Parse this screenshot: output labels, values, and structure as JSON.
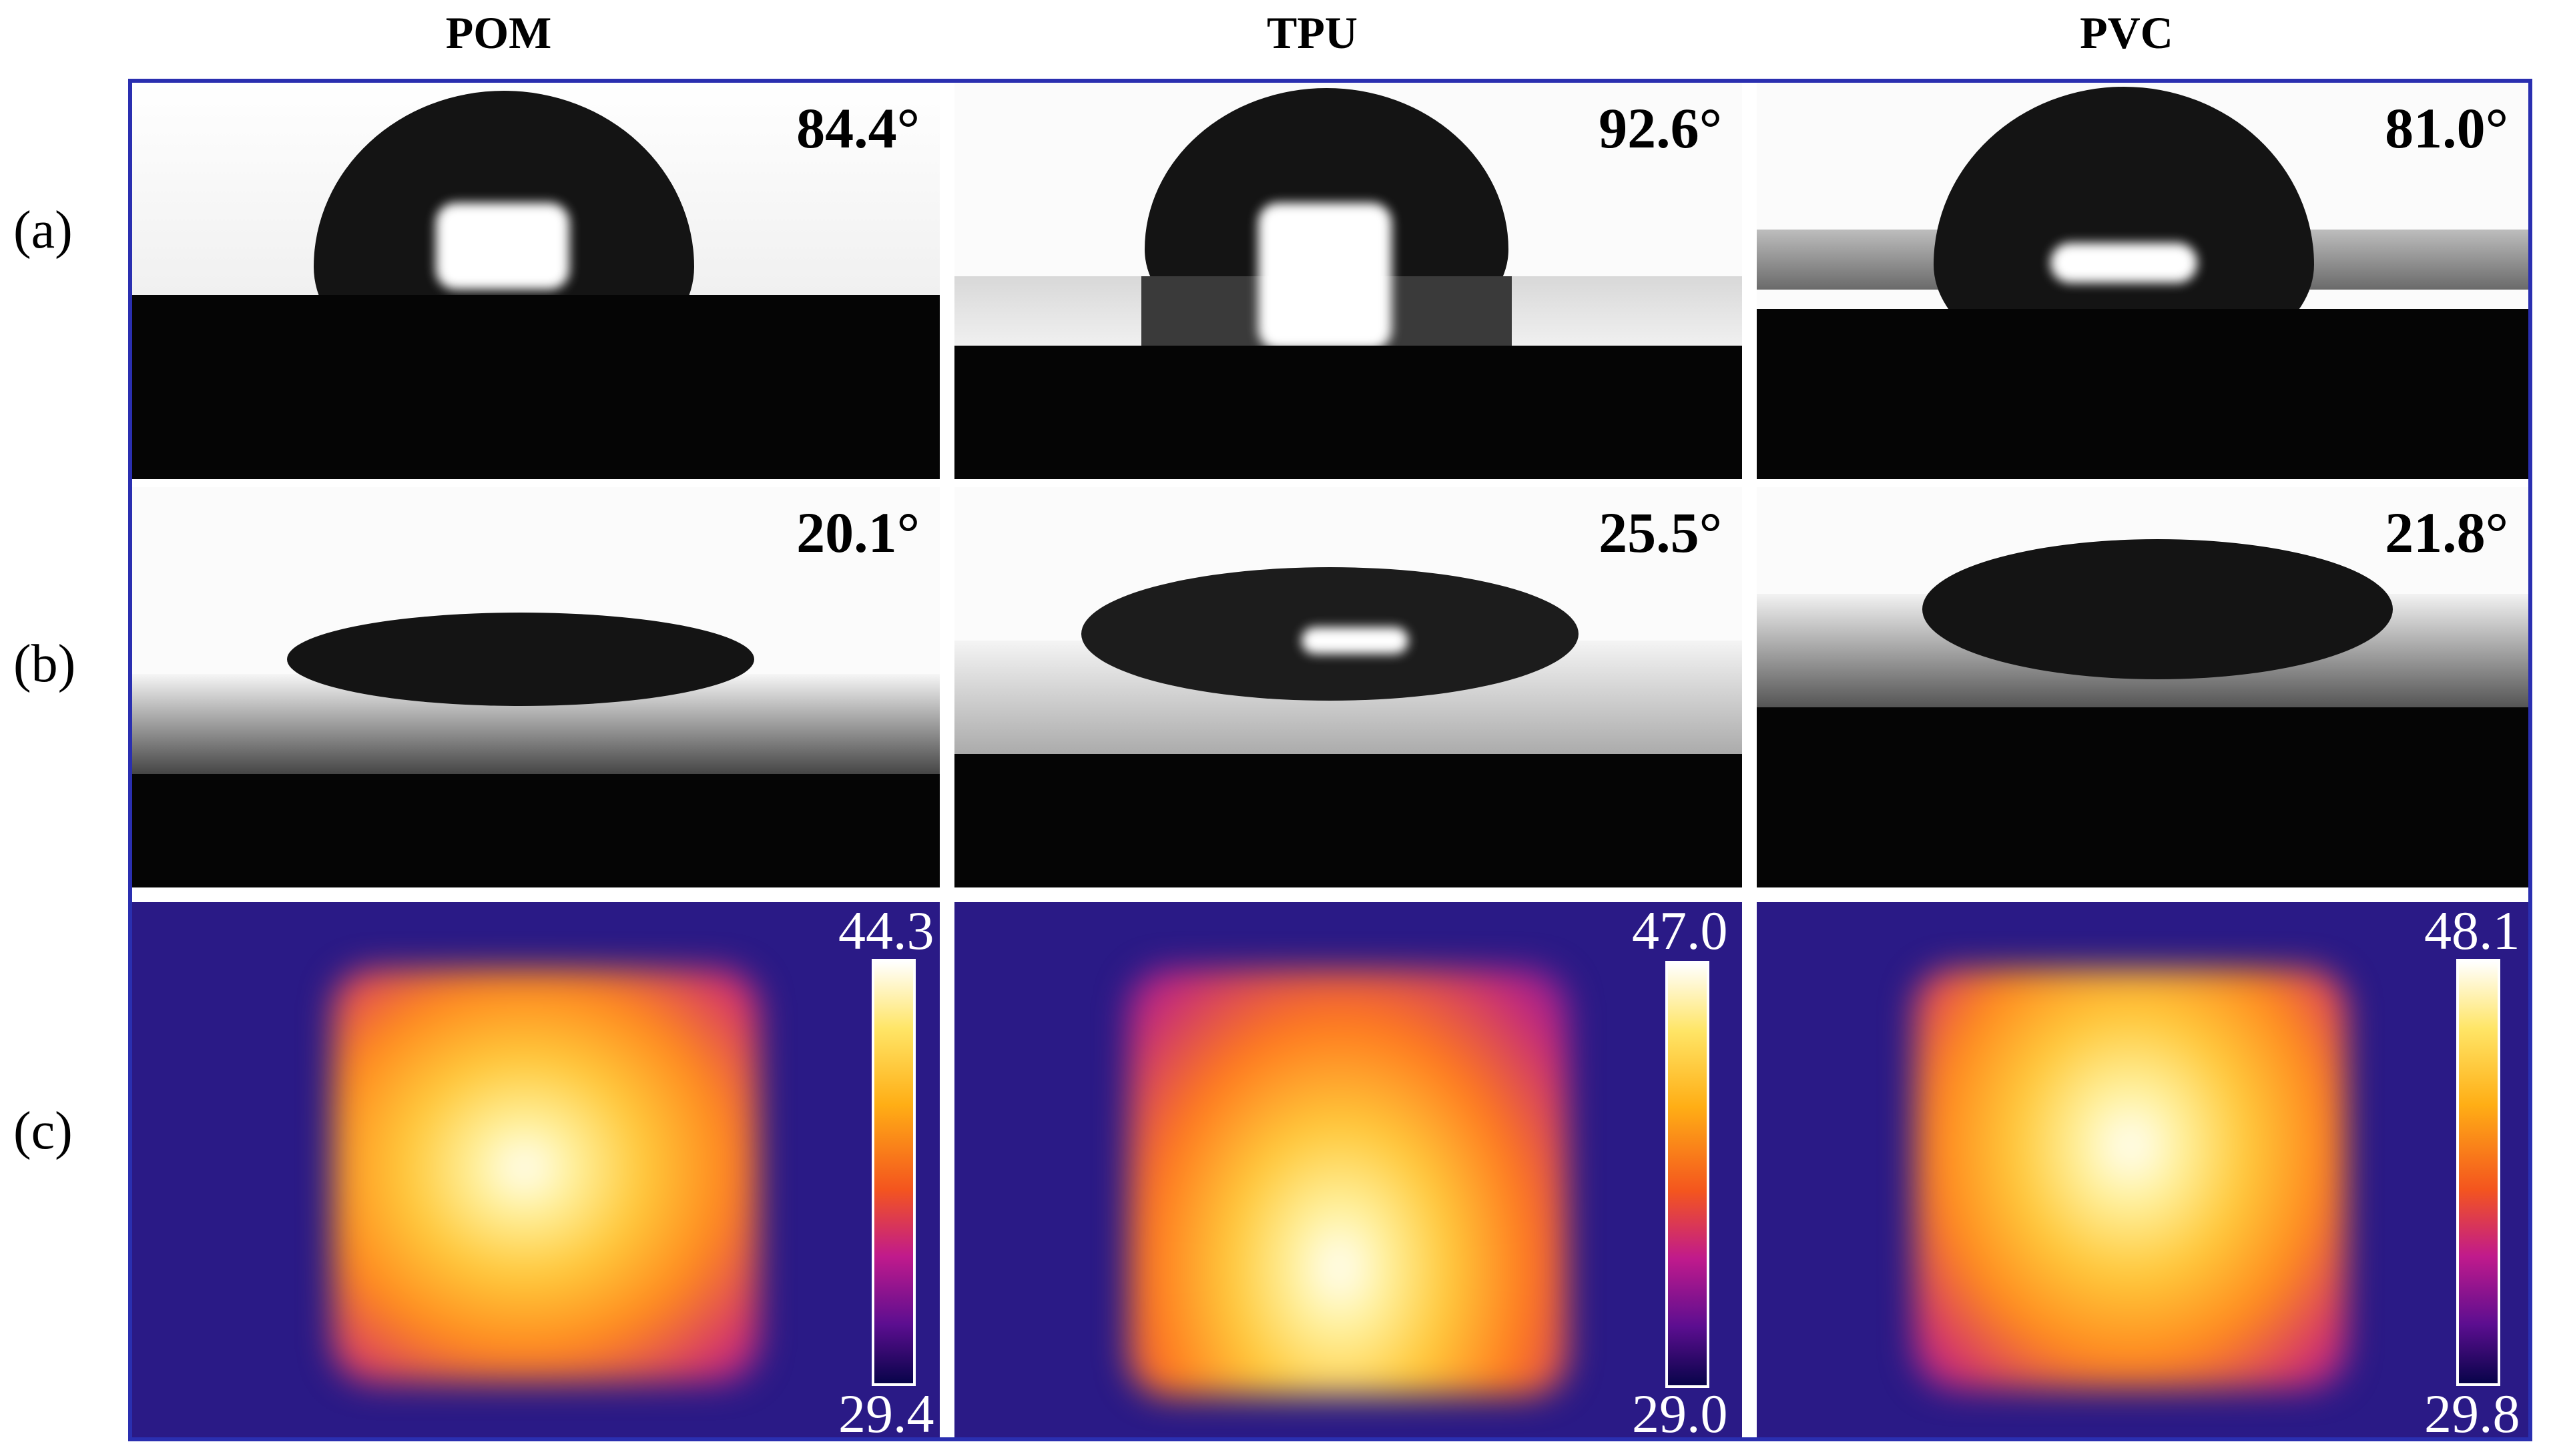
{
  "columns": [
    {
      "name": "POM"
    },
    {
      "name": "TPU"
    },
    {
      "name": "PVC"
    }
  ],
  "row_labels": {
    "a": "(a)",
    "b": "(b)",
    "c": "(c)"
  },
  "contact_angles": {
    "water": [
      "84.4°",
      "92.6°",
      "81.0°"
    ],
    "oil": [
      "20.1°",
      "25.5°",
      "21.8°"
    ]
  },
  "thermal_ranges": [
    {
      "max": "44.3",
      "min": "29.4"
    },
    {
      "max": "47.0",
      "min": "29.0"
    },
    {
      "max": "48.1",
      "min": "29.8"
    }
  ],
  "colors": {
    "frame": "#2a2fb0",
    "thermal_background": "#2a1a86",
    "colormap": [
      "#ffffff",
      "#ffe566",
      "#ffae15",
      "#f4551e",
      "#c01a8c",
      "#5c0e90",
      "#08044a"
    ]
  }
}
